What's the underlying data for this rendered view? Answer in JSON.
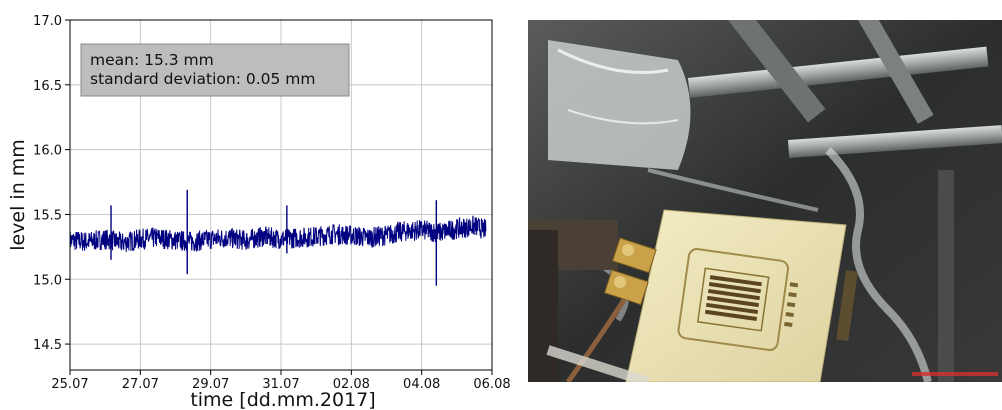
{
  "chart_data": {
    "type": "line",
    "title": "",
    "xlabel": "time [dd.mm.2017]",
    "ylabel": "level in mm",
    "x_ticks": [
      "25.07",
      "27.07",
      "29.07",
      "31.07",
      "02.08",
      "04.08",
      "06.08"
    ],
    "xlim": [
      "25.07.2017",
      "06.08.2017"
    ],
    "ylim": [
      14.3,
      17.0
    ],
    "y_ticks": [
      14.5,
      15.0,
      15.5,
      16.0,
      16.5,
      17.0
    ],
    "grid": true,
    "series_color": "#000080",
    "series": [
      {
        "x": [
          "25.07.2017",
          "25.07.2017 12:00",
          "26.07.2017",
          "26.07.2017 12:00",
          "27.07.2017",
          "27.07.2017 12:00",
          "28.07.2017",
          "28.07.2017 12:00",
          "29.07.2017",
          "29.07.2017 12:00",
          "30.07.2017",
          "30.07.2017 12:00",
          "31.07.2017",
          "31.07.2017 12:00",
          "01.08.2017",
          "01.08.2017 12:00",
          "02.08.2017",
          "02.08.2017 12:00",
          "03.08.2017",
          "03.08.2017 12:00",
          "04.08.2017",
          "04.08.2017 12:00",
          "05.08.2017",
          "05.08.2017 12:00",
          "05.08.2017 20:00"
        ],
        "y": [
          15.3,
          15.29,
          15.31,
          15.28,
          15.31,
          15.32,
          15.3,
          15.29,
          15.31,
          15.32,
          15.3,
          15.33,
          15.31,
          15.32,
          15.33,
          15.35,
          15.34,
          15.32,
          15.34,
          15.37,
          15.38,
          15.36,
          15.39,
          15.41,
          15.38
        ]
      }
    ],
    "band_halfwidth_mm": 0.08,
    "spikes": [
      {
        "x": "26.07.2017 04:00",
        "top": 15.57,
        "bottom": 15.15
      },
      {
        "x": "28.07.2017 08:00",
        "top": 15.69,
        "bottom": 15.04
      },
      {
        "x": "31.07.2017 04:00",
        "top": 15.57,
        "bottom": 15.2
      },
      {
        "x": "04.08.2017 10:00",
        "top": 15.61,
        "bottom": 14.95
      }
    ],
    "annotation": {
      "line1": "mean: 15.3 mm",
      "line2": "standard deviation: 0.05 mm"
    }
  },
  "photo": {
    "board_color": "#efe6b6",
    "background_color": "#2a2c2c"
  }
}
